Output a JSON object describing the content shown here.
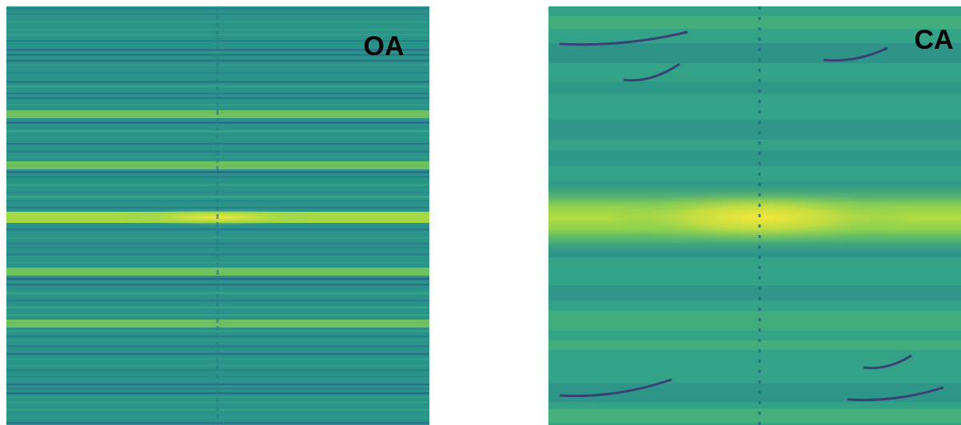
{
  "panels": [
    {
      "label": "OA"
    },
    {
      "label": "CA"
    }
  ]
}
